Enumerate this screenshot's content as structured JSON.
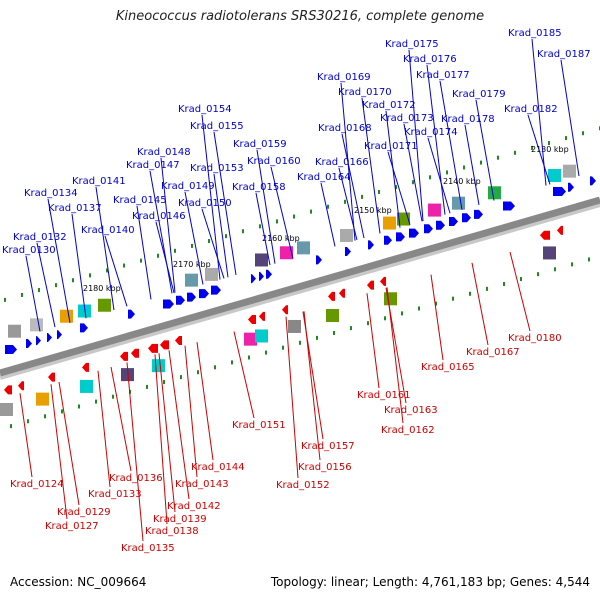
{
  "title": "Kineococcus radiotolerans SRS30216, complete genome",
  "footer": {
    "accession": "Accession: NC_009664",
    "summary": "Topology: linear; Length: 4,761,183 bp; Genes: 4,544"
  },
  "colors": {
    "forward_gene": "#0000ee",
    "reverse_gene": "#ee0000",
    "forward_label": "#0000cc",
    "reverse_label": "#cc0000",
    "backbone": "#888888",
    "tick": "#228822"
  },
  "scale_labels": [
    "2130 kbp",
    "2140 kbp",
    "2150 kbp",
    "2160 kbp",
    "2170 kbp",
    "2180 kbp"
  ],
  "top_labels": [
    "Krad_0130",
    "Krad_0132",
    "Krad_0134",
    "Krad_0137",
    "Krad_0141",
    "Krad_0140",
    "Krad_0145",
    "Krad_0146",
    "Krad_0147",
    "Krad_0148",
    "Krad_0149",
    "Krad_0150",
    "Krad_0153",
    "Krad_0154",
    "Krad_0155",
    "Krad_0158",
    "Krad_0159",
    "Krad_0160",
    "Krad_0164",
    "Krad_0166",
    "Krad_0168",
    "Krad_0169",
    "Krad_0170",
    "Krad_0171",
    "Krad_0172",
    "Krad_0173",
    "Krad_0174",
    "Krad_0175",
    "Krad_0176",
    "Krad_0177",
    "Krad_0178",
    "Krad_0179",
    "Krad_0182",
    "Krad_0185",
    "Krad_0187"
  ],
  "bottom_labels": [
    "Krad_0124",
    "Krad_0127",
    "Krad_0129",
    "Krad_0133",
    "Krad_0135",
    "Krad_0136",
    "Krad_0138",
    "Krad_0139",
    "Krad_0142",
    "Krad_0143",
    "Krad_0144",
    "Krad_0151",
    "Krad_0152",
    "Krad_0156",
    "Krad_0157",
    "Krad_0161",
    "Krad_0162",
    "Krad_0163",
    "Krad_0165",
    "Krad_0167",
    "Krad_0180"
  ]
}
